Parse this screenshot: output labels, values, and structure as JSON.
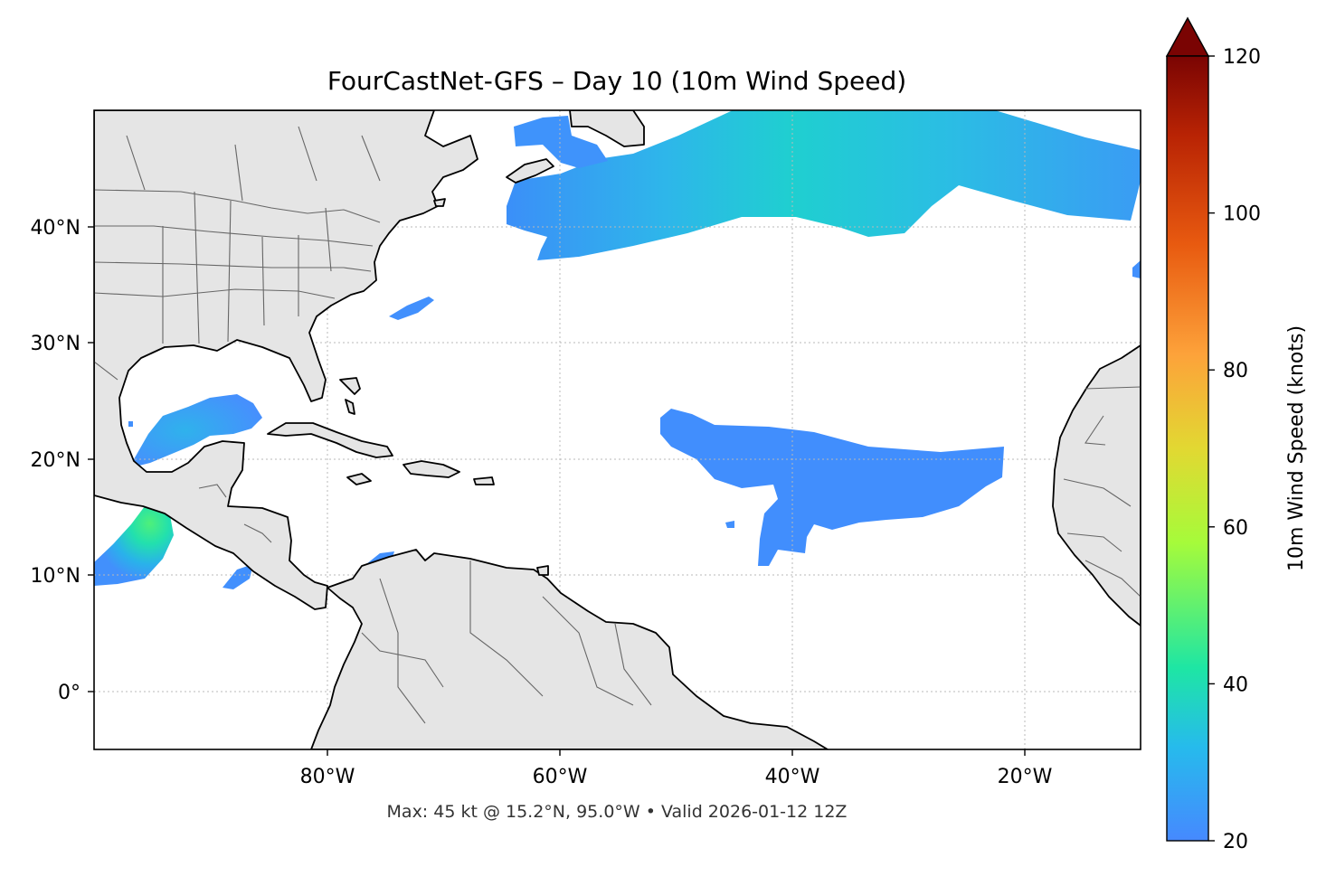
{
  "title": "FourCastNet-GFS – Day 10 (10m Wind Speed)",
  "caption": "Max: 45 kt @ 15.2°N, 95.0°W • Valid 2026-01-12 12Z",
  "colorbar": {
    "label": "10m Wind Speed (knots)",
    "min": 20,
    "max": 120,
    "ticks": [
      {
        "value": 20,
        "label": "20"
      },
      {
        "value": 40,
        "label": "40"
      },
      {
        "value": 60,
        "label": "60"
      },
      {
        "value": 80,
        "label": "80"
      },
      {
        "value": 100,
        "label": "100"
      },
      {
        "value": 120,
        "label": "120"
      }
    ],
    "extend": "max",
    "colormap": "turbo",
    "colors": [
      "#4689ff",
      "#26bbec",
      "#1ee6a4",
      "#a6fb3a",
      "#e2d832",
      "#fda23a",
      "#e85a10",
      "#b82304",
      "#7a0403"
    ]
  },
  "map": {
    "lon_range": [
      -100,
      -10
    ],
    "lat_range": [
      -5,
      50
    ],
    "lon_ticks": [
      {
        "value": -80,
        "label": "80°W"
      },
      {
        "value": -60,
        "label": "60°W"
      },
      {
        "value": -40,
        "label": "40°W"
      },
      {
        "value": -20,
        "label": "20°W"
      }
    ],
    "lat_ticks": [
      {
        "value": 40,
        "label": "40°N"
      },
      {
        "value": 30,
        "label": "30°N"
      },
      {
        "value": 20,
        "label": "20°N"
      },
      {
        "value": 10,
        "label": "10°N"
      },
      {
        "value": 0,
        "label": "0°"
      }
    ],
    "land_color": "#e5e5e5",
    "coastline_color": "#000000",
    "border_color": "#666666",
    "gridlines": true,
    "max_wind_kt": 45,
    "max_location": {
      "lat": 15.2,
      "lon": -95.0
    }
  }
}
